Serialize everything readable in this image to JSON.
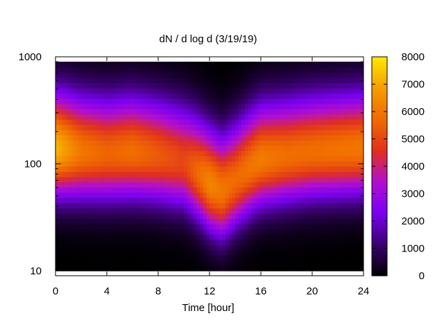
{
  "chart_data": {
    "type": "heatmap",
    "title": "dN / d log d (3/19/19)",
    "xlabel": "Time [hour]",
    "ylabel": "",
    "xlim": [
      0,
      24
    ],
    "ylim": [
      9,
      1000
    ],
    "yscale": "log",
    "x_ticks": [
      0,
      4,
      8,
      12,
      16,
      20,
      24
    ],
    "x_tick_labels": [
      "0",
      "4",
      "8",
      "12",
      "16",
      "20",
      "24"
    ],
    "y_ticks": [
      10,
      100,
      1000
    ],
    "y_tick_labels": [
      "10",
      "100",
      "1000"
    ],
    "colorbar": {
      "range": [
        0,
        8000
      ],
      "ticks": [
        0,
        1000,
        2000,
        3000,
        4000,
        5000,
        6000,
        7000,
        8000
      ],
      "tick_labels": [
        "0",
        "1000",
        "2000",
        "3000",
        "4000",
        "5000",
        "6000",
        "7000",
        "8000"
      ],
      "palette": [
        "#000000",
        "#3a0070",
        "#7a00f0",
        "#b10fd0",
        "#e0301f",
        "#f06a00",
        "#f59d00",
        "#ffe800"
      ]
    },
    "data_extent": {
      "diameter_range": [
        10,
        900
      ]
    },
    "mode_diameter_by_hour": {
      "hours": [
        0,
        2,
        4,
        6,
        8,
        10,
        12,
        13,
        14,
        16,
        18,
        20,
        22,
        24
      ],
      "mode_diameter": [
        140,
        130,
        125,
        130,
        120,
        105,
        65,
        55,
        70,
        110,
        120,
        130,
        135,
        140
      ]
    },
    "peak_value_by_hour": {
      "hours": [
        0,
        2,
        4,
        6,
        8,
        10,
        12,
        13,
        14,
        16,
        18,
        20,
        22,
        24
      ],
      "peak": [
        7300,
        6000,
        5600,
        5800,
        5400,
        5000,
        6300,
        6000,
        5700,
        6100,
        5800,
        5800,
        5900,
        6000
      ]
    }
  }
}
